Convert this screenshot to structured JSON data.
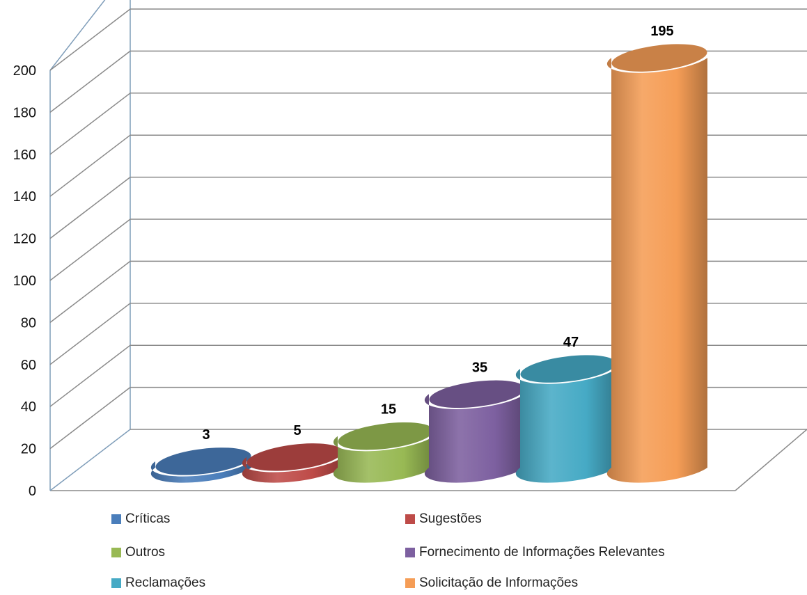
{
  "chart_data": {
    "type": "bar",
    "style": "3d-cylinder",
    "categories": [
      "Críticas",
      "Sugestões",
      "Outros",
      "Fornecimento de Informações Relevantes",
      "Reclamações",
      "Solicitação de Informações"
    ],
    "values": [
      3,
      5,
      15,
      35,
      47,
      195
    ],
    "data_labels": [
      "3",
      "5",
      "15",
      "35",
      "47",
      "195"
    ],
    "colors": [
      "#4A7EBB",
      "#BE4B48",
      "#98B954",
      "#7D60A0",
      "#46AAC5",
      "#F59D56"
    ],
    "ylim": [
      0,
      200
    ],
    "yticks": [
      "0",
      "20",
      "40",
      "60",
      "80",
      "100",
      "120",
      "140",
      "160",
      "180",
      "200"
    ],
    "grid": true,
    "legend_position": "bottom",
    "title": "",
    "xlabel": "",
    "ylabel": ""
  }
}
